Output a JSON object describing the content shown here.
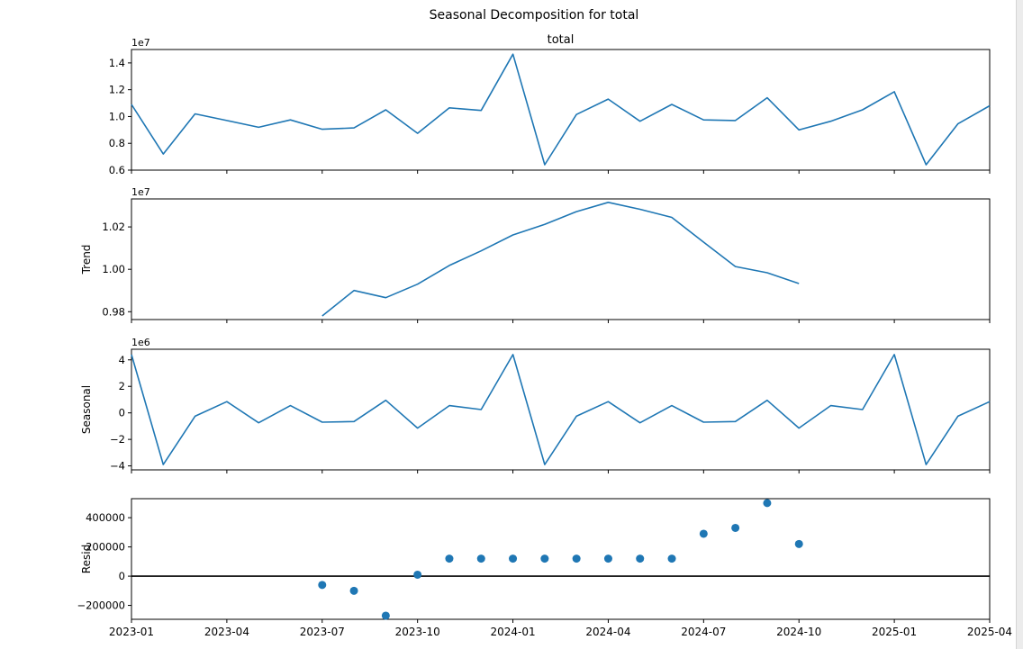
{
  "figure_title": "Seasonal Decomposition for total",
  "colors": {
    "line": "#1f77b4",
    "marker": "#1f77b4",
    "axis": "#000000",
    "zero_line": "#000000"
  },
  "x_ticks": [
    "2023-01",
    "2023-04",
    "2023-07",
    "2023-10",
    "2024-01",
    "2024-04",
    "2024-07",
    "2024-10",
    "2025-01",
    "2025-04"
  ],
  "chart_data": [
    {
      "type": "line",
      "title": "total",
      "ylabel": "",
      "scale_label": "1e7",
      "xlim": [
        "2023-01",
        "2025-04"
      ],
      "ylim": [
        0.6,
        1.5
      ],
      "yticks": [
        "0.6",
        "0.8",
        "1.0",
        "1.2",
        "1.4"
      ],
      "x": [
        "2023-01",
        "2023-02",
        "2023-03",
        "2023-04",
        "2023-05",
        "2023-06",
        "2023-07",
        "2023-08",
        "2023-09",
        "2023-10",
        "2023-11",
        "2023-12",
        "2024-01",
        "2024-02",
        "2024-03",
        "2024-04",
        "2024-05",
        "2024-06",
        "2024-07",
        "2024-08",
        "2024-09",
        "2024-10",
        "2024-11",
        "2024-12",
        "2025-01",
        "2025-02",
        "2025-03",
        "2025-04"
      ],
      "values": [
        1.09,
        0.72,
        1.02,
        0.97,
        0.92,
        0.975,
        0.905,
        0.915,
        1.05,
        0.875,
        1.065,
        1.045,
        1.465,
        0.64,
        1.015,
        1.13,
        0.965,
        1.09,
        0.975,
        0.97,
        1.14,
        0.9,
        0.965,
        1.05,
        1.185,
        0.64,
        0.945,
        1.08
      ]
    },
    {
      "type": "line",
      "title": "",
      "ylabel": "Trend",
      "scale_label": "1e7",
      "xlim": [
        "2023-01",
        "2025-04"
      ],
      "ylim": [
        0.9763,
        1.0332
      ],
      "yticks": [
        "0.98",
        "1.00",
        "1.02"
      ],
      "x": [
        "2023-07",
        "2023-08",
        "2023-09",
        "2023-10",
        "2023-11",
        "2023-12",
        "2024-01",
        "2024-02",
        "2024-03",
        "2024-04",
        "2024-05",
        "2024-06",
        "2024-07",
        "2024-08",
        "2024-09",
        "2024-10"
      ],
      "values": [
        0.978,
        0.99,
        0.9866,
        0.993,
        1.0018,
        1.0087,
        1.0162,
        1.0212,
        1.0272,
        1.0316,
        1.0283,
        1.0245,
        1.0128,
        1.0013,
        0.9984,
        0.9933
      ]
    },
    {
      "type": "line",
      "title": "",
      "ylabel": "Seasonal",
      "scale_label": "1e6",
      "xlim": [
        "2023-01",
        "2025-04"
      ],
      "ylim": [
        -4.3,
        4.8
      ],
      "yticks": [
        "−4",
        "−2",
        "0",
        "2",
        "4"
      ],
      "x": [
        "2023-01",
        "2023-02",
        "2023-03",
        "2023-04",
        "2023-05",
        "2023-06",
        "2023-07",
        "2023-08",
        "2023-09",
        "2023-10",
        "2023-11",
        "2023-12",
        "2024-01",
        "2024-02",
        "2024-03",
        "2024-04",
        "2024-05",
        "2024-06",
        "2024-07",
        "2024-08",
        "2024-09",
        "2024-10",
        "2024-11",
        "2024-12",
        "2025-01",
        "2025-02",
        "2025-03",
        "2025-04"
      ],
      "values": [
        4.4,
        -3.9,
        -0.25,
        0.85,
        -0.75,
        0.55,
        -0.7,
        -0.65,
        0.95,
        -1.15,
        0.55,
        0.25,
        4.4,
        -3.9,
        -0.25,
        0.85,
        -0.75,
        0.55,
        -0.7,
        -0.65,
        0.95,
        -1.15,
        0.55,
        0.25,
        4.4,
        -3.9,
        -0.25,
        0.85
      ]
    },
    {
      "type": "scatter",
      "title": "",
      "ylabel": "Resid",
      "scale_label": "",
      "xlim": [
        "2023-01",
        "2025-04"
      ],
      "ylim": [
        -295000,
        530000
      ],
      "yticks": [
        "−200000",
        "0",
        "200000",
        "400000"
      ],
      "zero_line": true,
      "x": [
        "2023-07",
        "2023-08",
        "2023-09",
        "2023-10",
        "2023-11",
        "2023-12",
        "2024-01",
        "2024-02",
        "2024-03",
        "2024-04",
        "2024-05",
        "2024-06",
        "2024-07",
        "2024-08",
        "2024-09",
        "2024-10"
      ],
      "values": [
        -60000,
        -100000,
        -270000,
        10000,
        120000,
        120000,
        120000,
        120000,
        120000,
        120000,
        120000,
        120000,
        290000,
        330000,
        500000,
        220000
      ]
    }
  ]
}
